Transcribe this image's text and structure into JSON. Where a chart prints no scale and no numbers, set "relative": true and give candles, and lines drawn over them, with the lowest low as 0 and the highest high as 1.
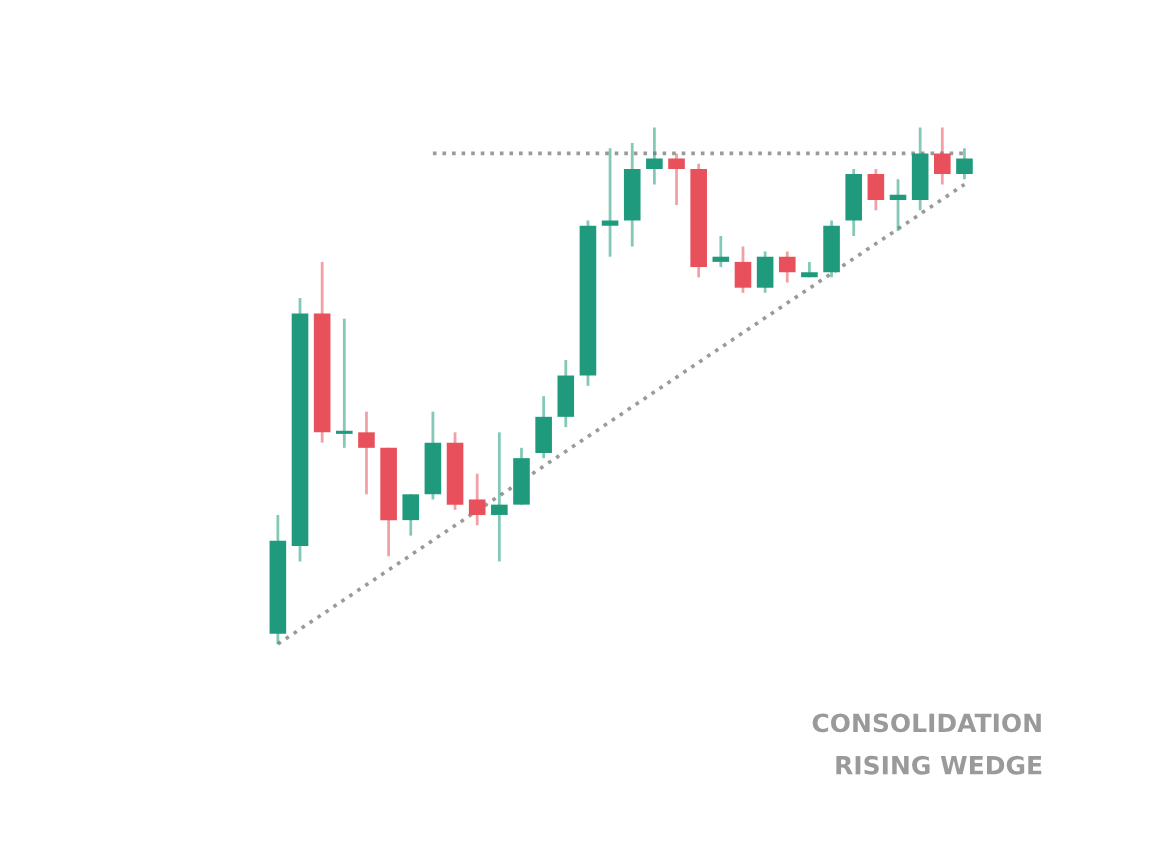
{
  "chart_data": {
    "type": "candlestick",
    "relative": true,
    "categories": [
      null,
      null,
      null,
      null,
      null,
      null,
      null,
      null,
      null,
      null,
      null,
      null,
      null,
      null,
      null,
      null,
      null,
      null,
      null,
      null,
      null,
      null,
      null,
      null,
      null,
      null,
      null,
      null,
      null,
      null,
      null,
      null
    ],
    "ohlc": [
      [
        0.02,
        0.25,
        0,
        0.2
      ],
      [
        0.19,
        0.67,
        0.16,
        0.64
      ],
      [
        0.64,
        0.74,
        0.39,
        0.41
      ],
      [
        0.41,
        0.63,
        0.38,
        0.41
      ],
      [
        0.41,
        0.45,
        0.29,
        0.38
      ],
      [
        0.38,
        0.38,
        0.17,
        0.24
      ],
      [
        0.24,
        0.29,
        0.21,
        0.29
      ],
      [
        0.29,
        0.45,
        0.28,
        0.39
      ],
      [
        0.39,
        0.41,
        0.26,
        0.27
      ],
      [
        0.28,
        0.33,
        0.23,
        0.25
      ],
      [
        0.25,
        0.41,
        0.16,
        0.27
      ],
      [
        0.27,
        0.38,
        0.27,
        0.36
      ],
      [
        0.37,
        0.48,
        0.36,
        0.44
      ],
      [
        0.44,
        0.55,
        0.42,
        0.52
      ],
      [
        0.52,
        0.82,
        0.5,
        0.81
      ],
      [
        0.81,
        0.96,
        0.75,
        0.82
      ],
      [
        0.82,
        0.97,
        0.77,
        0.92
      ],
      [
        0.92,
        1.0,
        0.89,
        0.94
      ],
      [
        0.94,
        0.95,
        0.85,
        0.92
      ],
      [
        0.92,
        0.93,
        0.71,
        0.73
      ],
      [
        0.74,
        0.79,
        0.73,
        0.75
      ],
      [
        0.74,
        0.77,
        0.68,
        0.69
      ],
      [
        0.69,
        0.76,
        0.68,
        0.75
      ],
      [
        0.75,
        0.76,
        0.7,
        0.72
      ],
      [
        0.71,
        0.74,
        0.71,
        0.72
      ],
      [
        0.72,
        0.82,
        0.71,
        0.81
      ],
      [
        0.82,
        0.92,
        0.79,
        0.91
      ],
      [
        0.91,
        0.92,
        0.84,
        0.86
      ],
      [
        0.86,
        0.9,
        0.8,
        0.87
      ],
      [
        0.86,
        1.0,
        0.84,
        0.95
      ],
      [
        0.95,
        1.0,
        0.89,
        0.91
      ],
      [
        0.91,
        0.96,
        0.9,
        0.94
      ]
    ],
    "colors": [
      "#1f9a7c",
      "#1f9a7c",
      "#e8505b",
      "#1f9a7c",
      "#e8505b",
      "#e8505b",
      "#1f9a7c",
      "#1f9a7c",
      "#e8505b",
      "#e8505b",
      "#1f9a7c",
      "#1f9a7c",
      "#1f9a7c",
      "#1f9a7c",
      "#1f9a7c",
      "#1f9a7c",
      "#1f9a7c",
      "#1f9a7c",
      "#e8505b",
      "#e8505b",
      "#1f9a7c",
      "#e8505b",
      "#1f9a7c",
      "#e8505b",
      "#1f9a7c",
      "#1f9a7c",
      "#1f9a7c",
      "#e8505b",
      "#1f9a7c",
      "#1f9a7c",
      "#e8505b",
      "#1f9a7c"
    ],
    "series": [
      {
        "type": "line",
        "values": [
          0,
          null,
          null,
          null,
          null,
          null,
          null,
          null,
          null,
          null,
          null,
          null,
          null,
          null,
          null,
          null,
          null,
          null,
          null,
          null,
          null,
          null,
          null,
          null,
          null,
          null,
          null,
          null,
          null,
          null,
          null,
          0.89
        ],
        "color": "#9a9a9a",
        "line_style": "dotted"
      },
      {
        "type": "line",
        "values": [
          null,
          null,
          null,
          null,
          null,
          null,
          null,
          0.95,
          null,
          null,
          null,
          null,
          null,
          null,
          null,
          null,
          null,
          null,
          null,
          null,
          null,
          null,
          null,
          null,
          null,
          null,
          null,
          null,
          null,
          null,
          null,
          0.95
        ],
        "color": "#9a9a9a",
        "line_style": "dotted"
      }
    ],
    "annotations": [
      "CONSOLIDATION",
      "RISING WEDGE"
    ]
  }
}
